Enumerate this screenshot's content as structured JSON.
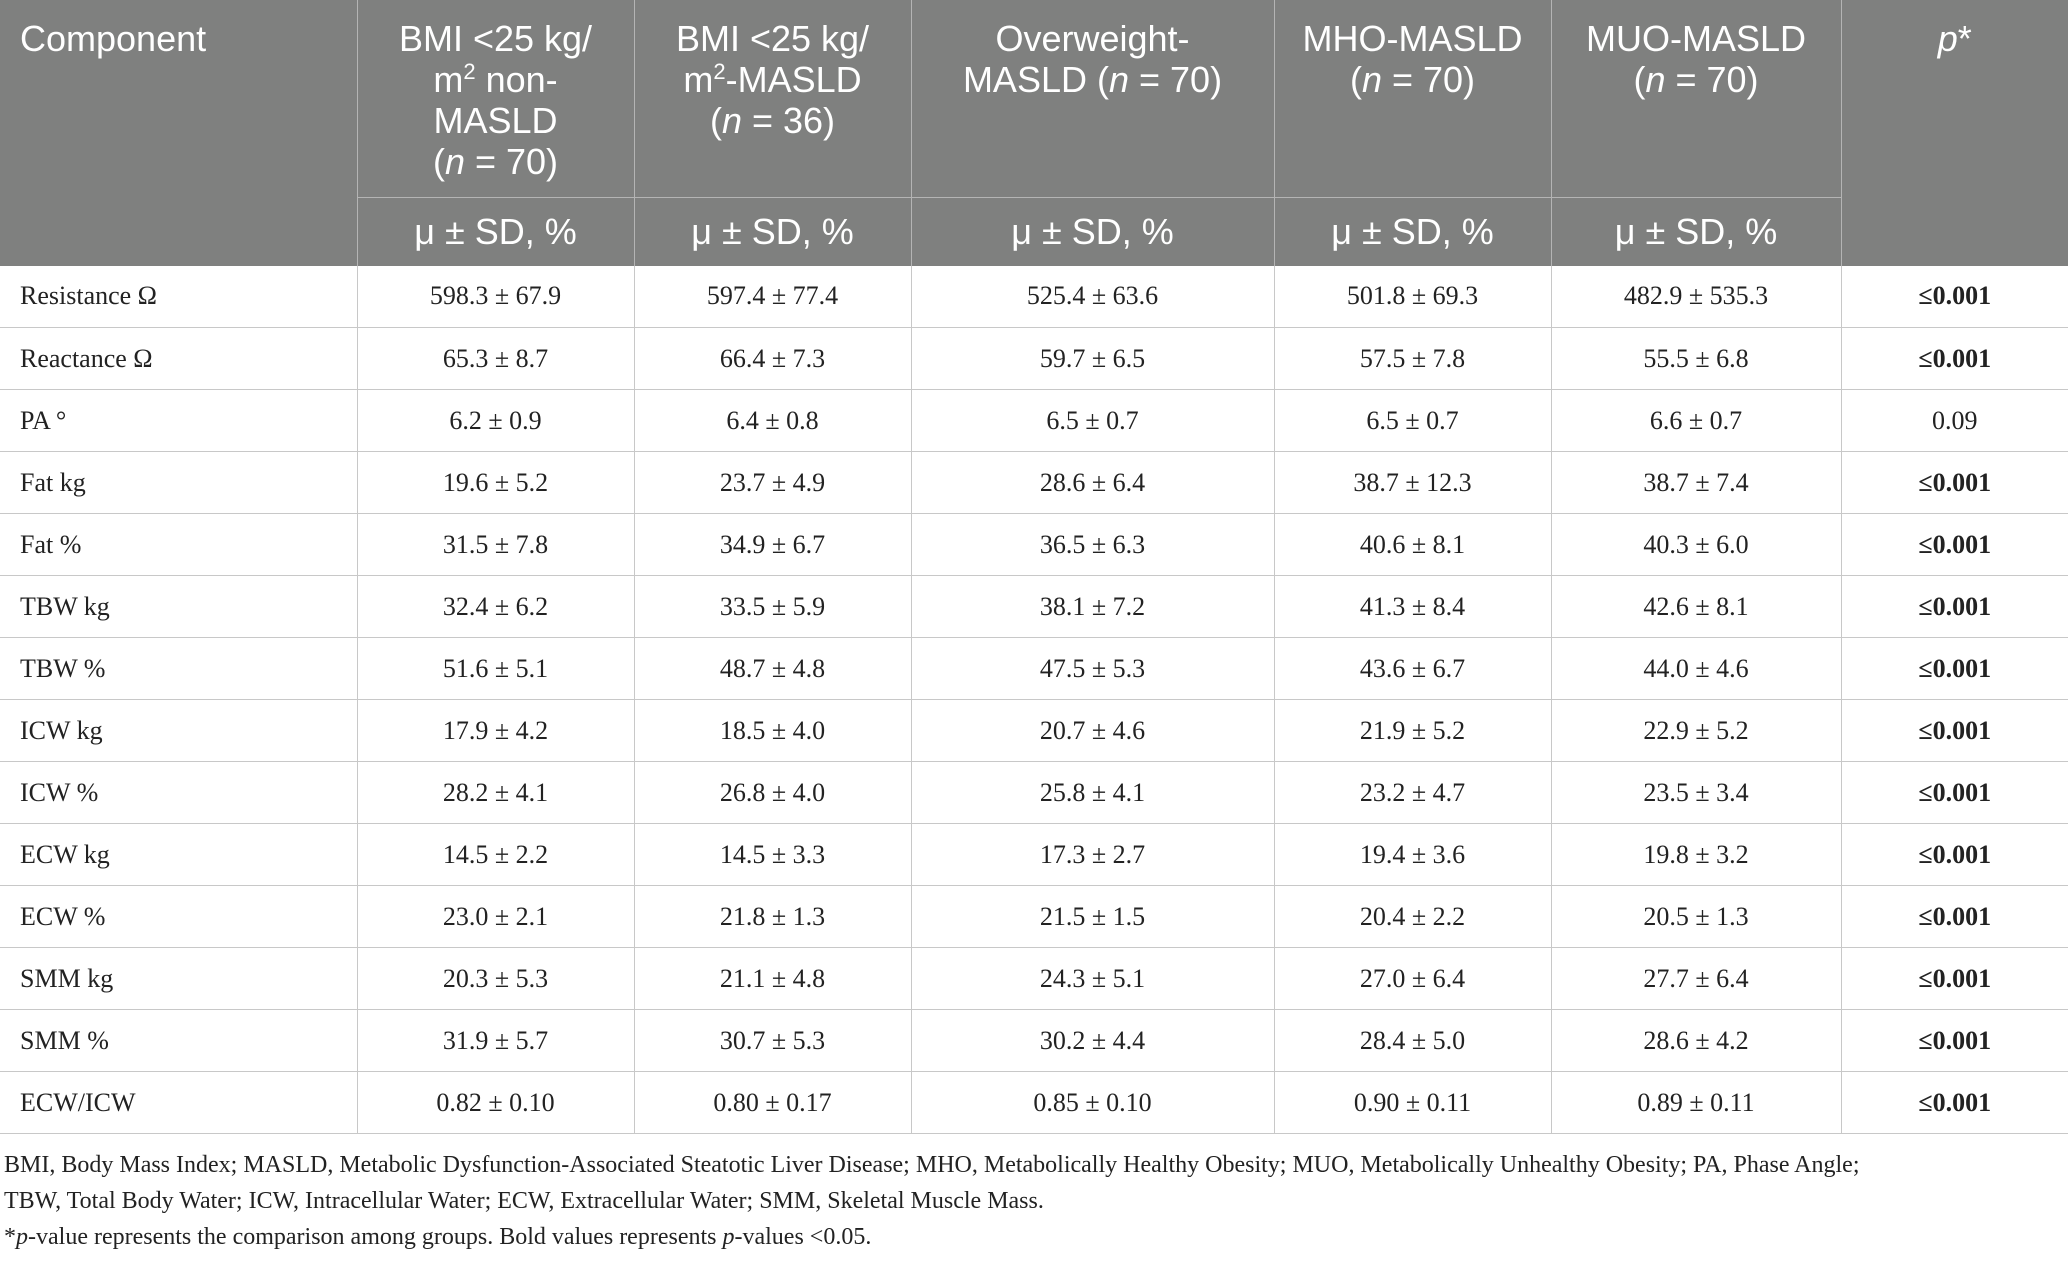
{
  "table": {
    "header": {
      "component": "Component",
      "p_col_italic": "p",
      "p_col_star": "*",
      "groups": [
        {
          "line1": "BMI <25 kg/",
          "m2_prefix": "m",
          "m2_sup": "2",
          "line2_rest": " non-",
          "line3": "MASLD",
          "n_open": "(",
          "n_italic": "n",
          "n_rest": " = 70)"
        },
        {
          "line1": "BMI <25 kg/",
          "m2_prefix": "m",
          "m2_sup": "2",
          "line2_rest": "-MASLD",
          "n_open": "(",
          "n_italic": "n",
          "n_rest": " = 36)"
        },
        {
          "line1": "Overweight-",
          "line2": "MASLD (",
          "n_italic": "n",
          "n_rest": " = 70)"
        },
        {
          "line1": "MHO-MASLD",
          "n_open": "(",
          "n_italic": "n",
          "n_rest": " = 70)"
        },
        {
          "line1": "MUO-MASLD",
          "n_open": "(",
          "n_italic": "n",
          "n_rest": " = 70)"
        }
      ],
      "subheader": "μ ± SD, %"
    },
    "rows": [
      {
        "label": "Resistance Ω",
        "values": [
          "598.3 ± 67.9",
          "597.4 ± 77.4",
          "525.4 ± 63.6",
          "501.8 ± 69.3",
          "482.9 ± 535.3"
        ],
        "p": "≤0.001",
        "p_bold": true
      },
      {
        "label": "Reactance Ω",
        "values": [
          "65.3 ± 8.7",
          "66.4 ± 7.3",
          "59.7 ± 6.5",
          "57.5 ± 7.8",
          "55.5 ± 6.8"
        ],
        "p": "≤0.001",
        "p_bold": true
      },
      {
        "label": "PA °",
        "values": [
          "6.2 ± 0.9",
          "6.4 ± 0.8",
          "6.5 ± 0.7",
          "6.5 ± 0.7",
          "6.6 ± 0.7"
        ],
        "p": "0.09",
        "p_bold": false
      },
      {
        "label": "Fat kg",
        "values": [
          "19.6 ± 5.2",
          "23.7 ± 4.9",
          "28.6 ± 6.4",
          "38.7 ± 12.3",
          "38.7 ± 7.4"
        ],
        "p": "≤0.001",
        "p_bold": true
      },
      {
        "label": "Fat %",
        "values": [
          "31.5 ± 7.8",
          "34.9 ± 6.7",
          "36.5 ± 6.3",
          "40.6 ± 8.1",
          "40.3 ± 6.0"
        ],
        "p": "≤0.001",
        "p_bold": true
      },
      {
        "label": "TBW kg",
        "values": [
          "32.4 ± 6.2",
          "33.5 ± 5.9",
          "38.1 ± 7.2",
          "41.3 ± 8.4",
          "42.6 ± 8.1"
        ],
        "p": "≤0.001",
        "p_bold": true
      },
      {
        "label": "TBW %",
        "values": [
          "51.6 ± 5.1",
          "48.7 ± 4.8",
          "47.5 ± 5.3",
          "43.6 ± 6.7",
          "44.0 ± 4.6"
        ],
        "p": "≤0.001",
        "p_bold": true
      },
      {
        "label": "ICW kg",
        "values": [
          "17.9 ± 4.2",
          "18.5 ± 4.0",
          "20.7 ± 4.6",
          "21.9 ± 5.2",
          "22.9 ± 5.2"
        ],
        "p": "≤0.001",
        "p_bold": true
      },
      {
        "label": "ICW %",
        "values": [
          "28.2 ± 4.1",
          "26.8 ± 4.0",
          "25.8 ± 4.1",
          "23.2 ± 4.7",
          "23.5 ± 3.4"
        ],
        "p": "≤0.001",
        "p_bold": true
      },
      {
        "label": "ECW kg",
        "values": [
          "14.5 ± 2.2",
          "14.5 ± 3.3",
          "17.3 ± 2.7",
          "19.4 ± 3.6",
          "19.8 ± 3.2"
        ],
        "p": "≤0.001",
        "p_bold": true
      },
      {
        "label": "ECW %",
        "values": [
          "23.0 ± 2.1",
          "21.8 ± 1.3",
          "21.5 ± 1.5",
          "20.4 ± 2.2",
          "20.5 ± 1.3"
        ],
        "p": "≤0.001",
        "p_bold": true
      },
      {
        "label": "SMM kg",
        "values": [
          "20.3 ± 5.3",
          "21.1 ± 4.8",
          "24.3 ± 5.1",
          "27.0 ± 6.4",
          "27.7 ± 6.4"
        ],
        "p": "≤0.001",
        "p_bold": true
      },
      {
        "label": "SMM %",
        "values": [
          "31.9 ± 5.7",
          "30.7 ± 5.3",
          "30.2 ± 4.4",
          "28.4 ± 5.0",
          "28.6 ± 4.2"
        ],
        "p": "≤0.001",
        "p_bold": true
      },
      {
        "label": "ECW/ICW",
        "values": [
          "0.82 ± 0.10",
          "0.80 ± 0.17",
          "0.85 ± 0.10",
          "0.90 ± 0.11",
          "0.89 ± 0.11"
        ],
        "p": "≤0.001",
        "p_bold": true
      }
    ]
  },
  "notes": {
    "abbrev_line1": "BMI, Body Mass Index; MASLD, Metabolic Dysfunction-Associated Steatotic Liver Disease; MHO, Metabolically Healthy Obesity; MUO, Metabolically Unhealthy Obesity; PA, Phase Angle;",
    "abbrev_line2": "TBW, Total Body Water; ICW, Intracellular Water; ECW, Extracellular Water; SMM, Skeletal Muscle Mass.",
    "footnote_star": "*",
    "footnote_p_italic": "p",
    "footnote_mid": "-value represents the comparison among groups. Bold values represents ",
    "footnote_p2_italic": "p",
    "footnote_end": "-values <0.05."
  }
}
